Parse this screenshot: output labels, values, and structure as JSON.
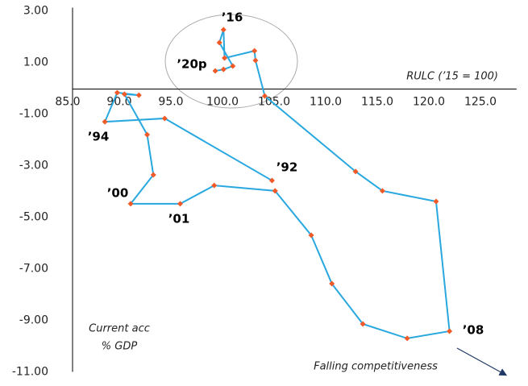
{
  "chart_data": {
    "type": "scatter",
    "xlabel": "RULC (’15 = 100)",
    "ylabel": [
      "Current acc",
      "% GDP"
    ],
    "x": [
      104.8,
      94.4,
      88.6,
      89.8,
      91.9,
      90.5,
      92.7,
      93.3,
      91.1,
      95.9,
      99.2,
      105.1,
      108.6,
      110.6,
      113.6,
      117.9,
      122.0,
      120.7,
      115.5,
      112.9,
      104.1,
      103.2,
      103.1,
      100.2,
      100.1,
      99.7,
      101.0,
      100.1,
      99.3
    ],
    "values": [
      -3.58,
      -1.17,
      -1.3,
      -0.17,
      -0.27,
      -0.23,
      -1.8,
      -3.36,
      -4.48,
      -4.48,
      -3.77,
      -3.98,
      -5.7,
      -7.58,
      -9.14,
      -9.7,
      -9.42,
      -4.39,
      -3.98,
      -3.23,
      -0.3,
      1.08,
      1.45,
      1.17,
      2.27,
      1.77,
      0.86,
      0.73,
      0.67
    ],
    "line_color": "#29a8e0",
    "marker_color": "#f05a28",
    "xlim": [
      85,
      128.5
    ],
    "ylim": [
      -11,
      3
    ],
    "xticks": [
      {
        "value": 85,
        "label": "85.0"
      },
      {
        "value": 90,
        "label": "90.0"
      },
      {
        "value": 95,
        "label": "95.0"
      },
      {
        "value": 100,
        "label": "100.0"
      },
      {
        "value": 105,
        "label": "105.0"
      },
      {
        "value": 110,
        "label": "110.0"
      },
      {
        "value": 115,
        "label": "115.0"
      },
      {
        "value": 120,
        "label": "120.0"
      },
      {
        "value": 125,
        "label": "125.0"
      }
    ],
    "yticks": [
      {
        "value": 3,
        "label": "3.00"
      },
      {
        "value": 1,
        "label": "1.00"
      },
      {
        "value": -1,
        "label": "-1.00"
      },
      {
        "value": -3,
        "label": "-3.00"
      },
      {
        "value": -5,
        "label": "-5.00"
      },
      {
        "value": -7,
        "label": "-7.00"
      },
      {
        "value": -9,
        "label": "-9.00"
      },
      {
        "value": -11,
        "label": "-11.00"
      }
    ],
    "annotations": [
      "’16",
      "’20p",
      "’94",
      "’92",
      "’00",
      "’01",
      "’08"
    ],
    "note": "Falling competitiveness"
  }
}
